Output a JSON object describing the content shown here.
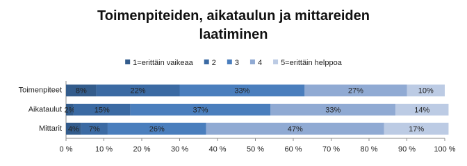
{
  "chart_data": {
    "type": "stacked-bar-horizontal",
    "title": "Toimenpiteiden, aikataulun ja mittareiden laatiminen",
    "categories": [
      "Toimenpiteet",
      "Aikataulut",
      "Mittarit"
    ],
    "series": [
      {
        "name": "1=erittäin vaikeaa",
        "color": "#335c8c",
        "values": [
          8,
          2,
          4
        ],
        "value_labels": [
          "8%",
          "2%",
          "4%"
        ]
      },
      {
        "name": "2",
        "color": "#3b6aa3",
        "values": [
          22,
          15,
          7
        ],
        "value_labels": [
          "22%",
          "15%",
          "7%"
        ]
      },
      {
        "name": "3",
        "color": "#4a7ebd",
        "values": [
          33,
          37,
          26
        ],
        "value_labels": [
          "33%",
          "37%",
          "26%"
        ]
      },
      {
        "name": "4",
        "color": "#90aad3",
        "values": [
          27,
          33,
          47
        ],
        "value_labels": [
          "27%",
          "33%",
          "47%"
        ]
      },
      {
        "name": "5=erittäin helppoa",
        "color": "#bccbe4",
        "values": [
          10,
          14,
          17
        ],
        "value_labels": [
          "10%",
          "14%",
          "17%"
        ]
      }
    ],
    "xlim": [
      0,
      100
    ],
    "xticks": [
      {
        "value": 0,
        "label": "0 %"
      },
      {
        "value": 10,
        "label": "10 %"
      },
      {
        "value": 20,
        "label": "20 %"
      },
      {
        "value": 30,
        "label": "30 %"
      },
      {
        "value": 40,
        "label": "40 %"
      },
      {
        "value": 50,
        "label": "50 %"
      },
      {
        "value": 60,
        "label": "60 %"
      },
      {
        "value": 70,
        "label": "70 %"
      },
      {
        "value": 80,
        "label": "80 %"
      },
      {
        "value": 90,
        "label": "90 %"
      },
      {
        "value": 100,
        "label": "100 %"
      }
    ],
    "grid": false,
    "legend": "top"
  }
}
